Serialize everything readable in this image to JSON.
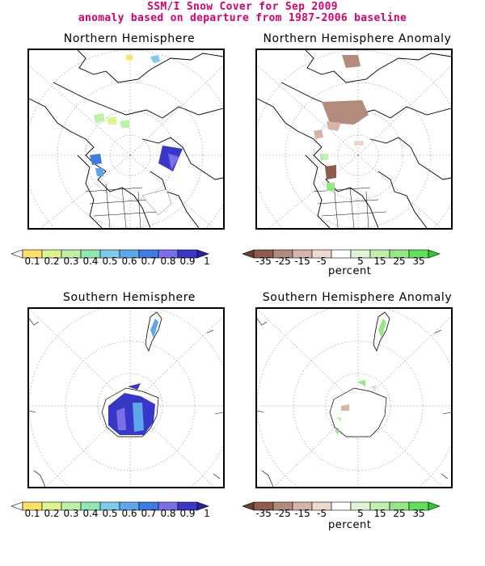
{
  "title_line1": "SSM/I Snow Cover for Sep 2009",
  "title_line2": "anomaly based on departure from 1987-2006 baseline",
  "panels": {
    "nh": {
      "title": "Northern Hemisphere"
    },
    "nh_anom": {
      "title": "Northern Hemisphere Anomaly"
    },
    "sh": {
      "title": "Southern Hemisphere"
    },
    "sh_anom": {
      "title": "Southern Hemisphere Anomaly"
    }
  },
  "cover_scale": {
    "labels": [
      "0.1",
      "0.2",
      "0.3",
      "0.4",
      "0.5",
      "0.6",
      "0.7",
      "0.8",
      "0.9",
      "1"
    ],
    "colors": [
      "#ffffff",
      "#ffe066",
      "#ddf58e",
      "#bdf2a6",
      "#8fe8b2",
      "#7fc8ee",
      "#5ea6ec",
      "#3d7ce6",
      "#7a6fe8",
      "#3838c8",
      "#2b1f9e"
    ]
  },
  "anomaly_scale": {
    "labels": [
      "-35",
      "-25",
      "-15",
      "-5",
      "5",
      "15",
      "25",
      "35"
    ],
    "colors": [
      "#6b3e32",
      "#8c5c4c",
      "#b48a7c",
      "#d7b4a8",
      "#efd8d0",
      "#ffffff",
      "#dff5d5",
      "#bff0ae",
      "#93e884",
      "#5fe05a",
      "#2ec82e"
    ],
    "unit": "percent"
  }
}
